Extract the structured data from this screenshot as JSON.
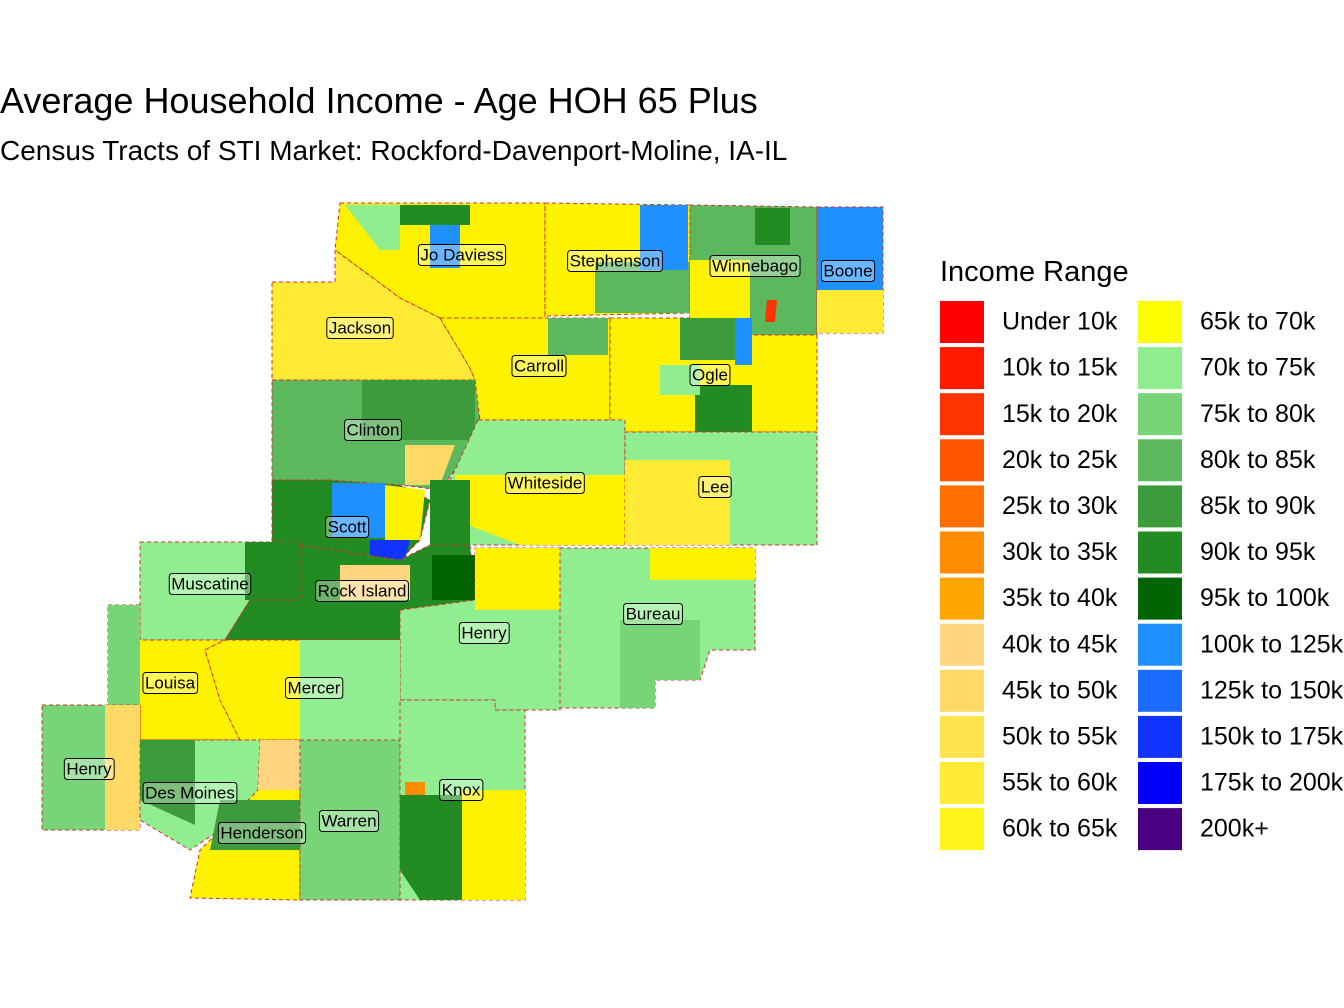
{
  "title": "Average Household Income - Age HOH 65 Plus",
  "subtitle": "Census Tracts of STI Market: Rockford-Davenport-Moline, IA-IL",
  "legend": {
    "title": "Income Range",
    "items": [
      {
        "label": "Under 10k",
        "color": "#FF0000"
      },
      {
        "label": "10k to 15k",
        "color": "#FF1A00"
      },
      {
        "label": "15k to 20k",
        "color": "#FF3300"
      },
      {
        "label": "20k to 25k",
        "color": "#FF5500"
      },
      {
        "label": "25k to 30k",
        "color": "#FF7000"
      },
      {
        "label": "30k to 35k",
        "color": "#FF8C00"
      },
      {
        "label": "35k to 40k",
        "color": "#FFA500"
      },
      {
        "label": "40k to 45k",
        "color": "#FFD580"
      },
      {
        "label": "45k to 50k",
        "color": "#FFD966"
      },
      {
        "label": "50k to 55k",
        "color": "#FFE44D"
      },
      {
        "label": "55k to 60k",
        "color": "#FFEB33"
      },
      {
        "label": "60k to 65k",
        "color": "#FFF51A"
      },
      {
        "label": "65k to 70k",
        "color": "#FFFF00"
      },
      {
        "label": "70k to 75k",
        "color": "#90EE90"
      },
      {
        "label": "75k to 80k",
        "color": "#77D477"
      },
      {
        "label": "80k to 85k",
        "color": "#5CB85C"
      },
      {
        "label": "85k to 90k",
        "color": "#3C9C3C"
      },
      {
        "label": "90k to 95k",
        "color": "#228B22"
      },
      {
        "label": "95k to 100k",
        "color": "#006400"
      },
      {
        "label": "100k to 125k",
        "color": "#1E90FF"
      },
      {
        "label": "125k to 150k",
        "color": "#1C6BFF"
      },
      {
        "label": "150k to 175k",
        "color": "#1033FF"
      },
      {
        "label": "175k to 200k",
        "color": "#0000FF"
      },
      {
        "label": "200k+",
        "color": "#4B0082"
      }
    ]
  },
  "map": {
    "counties": [
      "Jo Daviess",
      "Stephenson",
      "Winnebago",
      "Boone",
      "Jackson",
      "Carroll",
      "Ogle",
      "Clinton",
      "Whiteside",
      "Lee",
      "Scott",
      "Muscatine",
      "Rock Island",
      "Bureau",
      "Henry",
      "Louisa",
      "Mercer",
      "Henry",
      "Des Moines",
      "Knox",
      "Warren",
      "Henderson"
    ]
  }
}
